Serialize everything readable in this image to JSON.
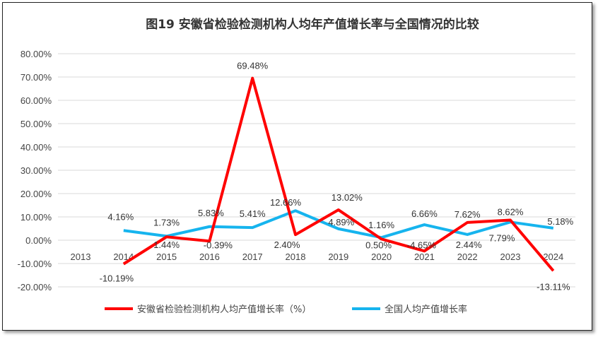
{
  "chart_data": {
    "type": "line",
    "title": "图19  安徽省检验检测机构人均年产值增长率与全国情况的比较",
    "categories": [
      "2013",
      "2014",
      "2015",
      "2016",
      "2017",
      "2018",
      "2019",
      "2020",
      "2021",
      "2022",
      "2023",
      "2024"
    ],
    "series": [
      {
        "name": "安徽省检验检测机构人均产值增长率（%）",
        "color": "#FF0000",
        "values": [
          null,
          -10.19,
          1.44,
          -0.39,
          69.48,
          2.4,
          13.02,
          0.5,
          -4.65,
          7.62,
          8.62,
          -13.11
        ],
        "labels": [
          "",
          "-10.19%",
          "1.44%",
          "-0.39%",
          "69.48%",
          "2.40%",
          "13.02%",
          "0.50%",
          "-4.65%",
          "7.62%",
          "8.62%",
          "-13.11%"
        ]
      },
      {
        "name": "全国人均产值增长率",
        "color": "#16B4EE",
        "values": [
          null,
          4.16,
          1.73,
          5.83,
          5.41,
          12.66,
          4.89,
          1.16,
          6.66,
          2.44,
          7.79,
          5.18
        ],
        "labels": [
          "",
          "4.16%",
          "1.73%",
          "5.83%",
          "5.41%",
          "12.66%",
          "4.89%",
          "1.16%",
          "6.66%",
          "2.44%",
          "7.79%",
          "5.18%"
        ]
      }
    ],
    "yticks": [
      "80.00%",
      "70.00%",
      "60.00%",
      "50.00%",
      "40.00%",
      "30.00%",
      "20.00%",
      "10.00%",
      "0.00%",
      "-10.00%",
      "-20.00%"
    ],
    "ylim": [
      -20,
      80
    ],
    "grid": true,
    "legend": "bottom"
  }
}
